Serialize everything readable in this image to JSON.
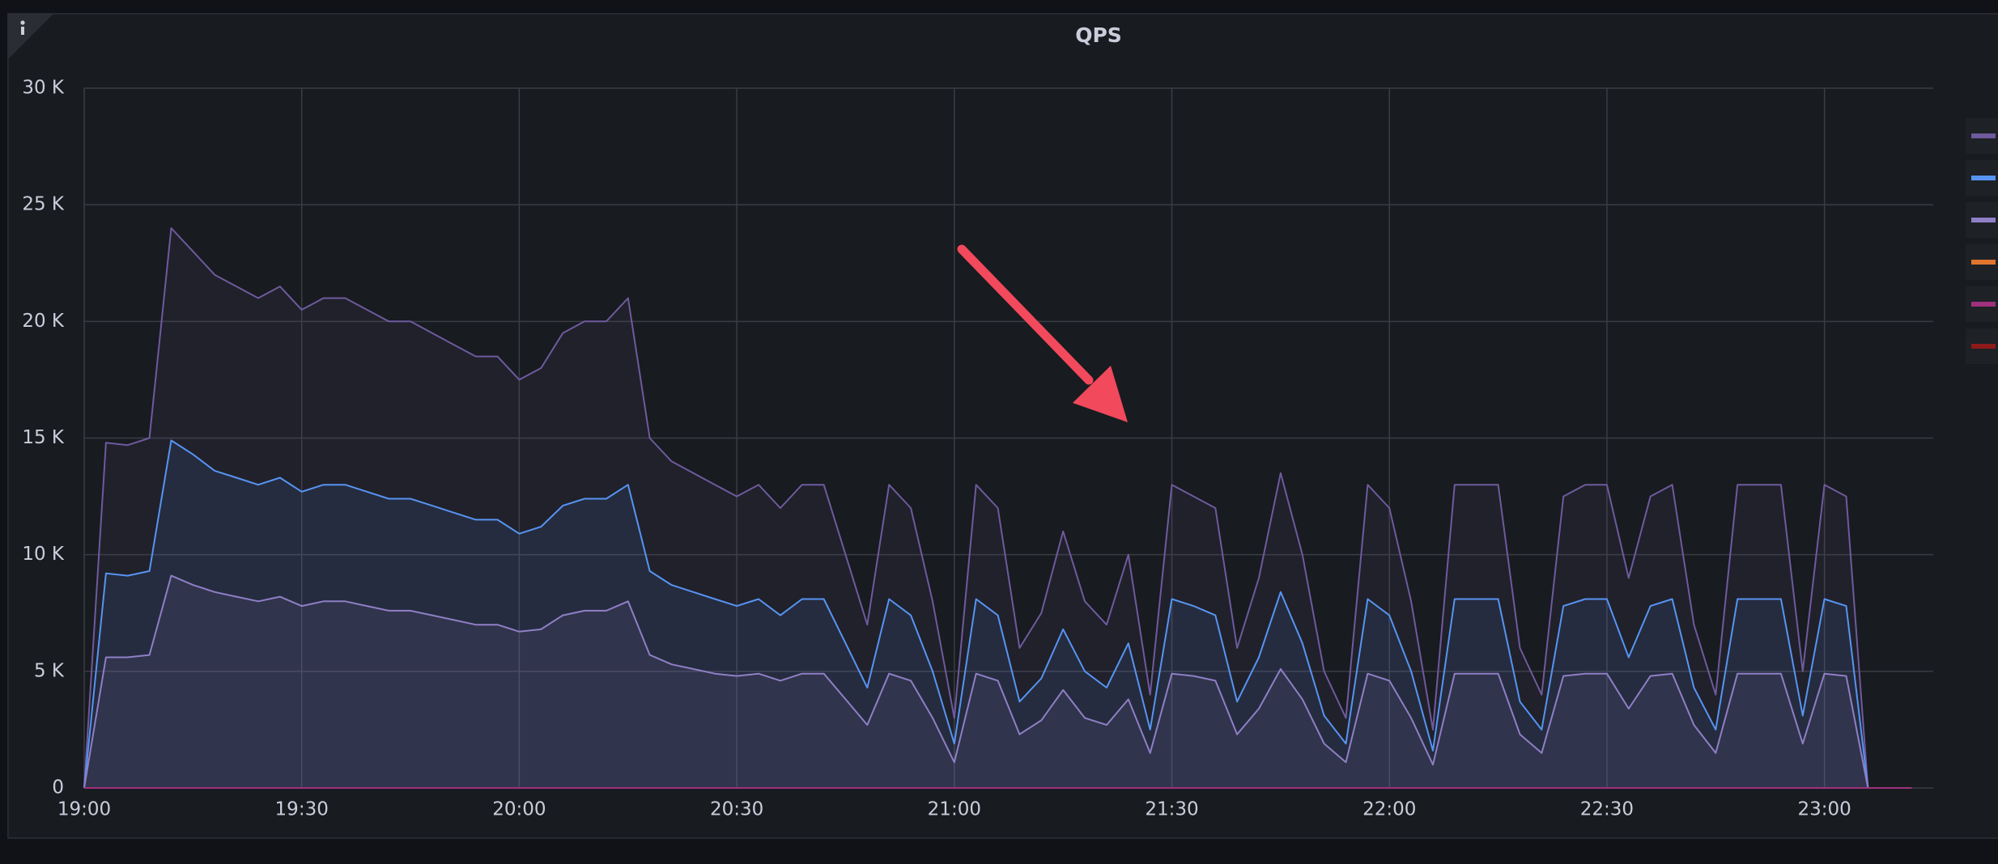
{
  "chart_data": {
    "type": "line",
    "title": "QPS",
    "x": [
      "19:00",
      "19:03",
      "19:06",
      "19:09",
      "19:12",
      "19:15",
      "19:18",
      "19:21",
      "19:24",
      "19:27",
      "19:30",
      "19:33",
      "19:36",
      "19:39",
      "19:42",
      "19:45",
      "19:48",
      "19:51",
      "19:54",
      "19:57",
      "20:00",
      "20:03",
      "20:06",
      "20:09",
      "20:12",
      "20:15",
      "20:18",
      "20:21",
      "20:24",
      "20:27",
      "20:30",
      "20:33",
      "20:36",
      "20:39",
      "20:42",
      "20:45",
      "20:48",
      "20:51",
      "20:54",
      "20:57",
      "21:00",
      "21:03",
      "21:06",
      "21:09",
      "21:12",
      "21:15",
      "21:18",
      "21:21",
      "21:24",
      "21:27",
      "21:30",
      "21:33",
      "21:36",
      "21:39",
      "21:42",
      "21:45",
      "21:48",
      "21:51",
      "21:54",
      "21:57",
      "22:00",
      "22:03",
      "22:06",
      "22:09",
      "22:12",
      "22:15",
      "22:18",
      "22:21",
      "22:24",
      "22:27",
      "22:30",
      "22:33",
      "22:36",
      "22:39",
      "22:42",
      "22:45",
      "22:48",
      "22:51",
      "22:54",
      "22:57",
      "23:00",
      "23:03",
      "23:06",
      "23:09",
      "23:12"
    ],
    "series": [
      {
        "color": "#6e5a9e",
        "values": [
          0,
          14800,
          14700,
          15000,
          24000,
          23000,
          22000,
          21500,
          21000,
          21500,
          20500,
          21000,
          21000,
          20500,
          20000,
          20000,
          19500,
          19000,
          18500,
          18500,
          17500,
          18000,
          19500,
          20000,
          20000,
          21000,
          15000,
          14000,
          13500,
          13000,
          12500,
          13000,
          12000,
          13000,
          13000,
          10000,
          7000,
          13000,
          12000,
          8000,
          3000,
          13000,
          12000,
          6000,
          7500,
          11000,
          8000,
          7000,
          10000,
          4000,
          13000,
          12500,
          12000,
          6000,
          9000,
          13500,
          10000,
          5000,
          3000,
          13000,
          12000,
          8000,
          2500,
          13000,
          13000,
          13000,
          6000,
          4000,
          12500,
          13000,
          13000,
          9000,
          12500,
          13000,
          7000,
          4000,
          13000,
          13000,
          13000,
          5000,
          13000,
          12500,
          0,
          0,
          0
        ]
      },
      {
        "color": "#5794f2",
        "values": [
          0,
          9200,
          9100,
          9300,
          14900,
          14300,
          13600,
          13300,
          13000,
          13300,
          12700,
          13000,
          13000,
          12700,
          12400,
          12400,
          12100,
          11800,
          11500,
          11500,
          10900,
          11200,
          12100,
          12400,
          12400,
          13000,
          9300,
          8700,
          8400,
          8100,
          7800,
          8100,
          7400,
          8100,
          8100,
          6200,
          4300,
          8100,
          7400,
          5000,
          1900,
          8100,
          7400,
          3700,
          4700,
          6800,
          5000,
          4300,
          6200,
          2500,
          8100,
          7800,
          7400,
          3700,
          5600,
          8400,
          6200,
          3100,
          1900,
          8100,
          7400,
          5000,
          1600,
          8100,
          8100,
          8100,
          3700,
          2500,
          7800,
          8100,
          8100,
          5600,
          7800,
          8100,
          4300,
          2500,
          8100,
          8100,
          8100,
          3100,
          8100,
          7800,
          0,
          0,
          0
        ]
      },
      {
        "color": "#8f7fc6",
        "values": [
          0,
          5600,
          5600,
          5700,
          9100,
          8700,
          8400,
          8200,
          8000,
          8200,
          7800,
          8000,
          8000,
          7800,
          7600,
          7600,
          7400,
          7200,
          7000,
          7000,
          6700,
          6800,
          7400,
          7600,
          7600,
          8000,
          5700,
          5300,
          5100,
          4900,
          4800,
          4900,
          4600,
          4900,
          4900,
          3800,
          2700,
          4900,
          4600,
          3000,
          1100,
          4900,
          4600,
          2300,
          2900,
          4200,
          3000,
          2700,
          3800,
          1500,
          4900,
          4800,
          4600,
          2300,
          3400,
          5100,
          3800,
          1900,
          1100,
          4900,
          4600,
          3000,
          1000,
          4900,
          4900,
          4900,
          2300,
          1500,
          4800,
          4900,
          4900,
          3400,
          4800,
          4900,
          2700,
          1500,
          4900,
          4900,
          4900,
          1900,
          4900,
          4800,
          0,
          0,
          0
        ]
      },
      {
        "color": "#e0752d",
        "values": [
          0,
          0,
          0,
          0,
          0,
          0,
          0,
          0,
          0,
          0,
          0,
          0,
          0,
          0,
          0,
          0,
          0,
          0,
          0,
          0,
          0,
          0,
          0,
          0,
          0,
          0,
          0,
          0,
          0,
          0,
          0,
          0,
          0,
          0,
          0,
          0,
          0,
          0,
          0,
          0,
          0,
          0,
          0,
          0,
          0,
          0,
          0,
          0,
          0,
          0,
          0,
          0,
          0,
          0,
          0,
          0,
          0,
          0,
          0,
          0,
          0,
          0,
          0,
          0,
          0,
          0,
          0,
          0,
          0,
          0,
          0,
          0,
          0,
          0,
          0,
          0,
          0,
          0,
          0,
          0,
          0,
          0,
          0,
          0,
          0
        ]
      },
      {
        "color": "#8e1a1a",
        "values": [
          0,
          0,
          0,
          0,
          0,
          0,
          0,
          0,
          0,
          0,
          0,
          0,
          0,
          0,
          0,
          0,
          0,
          0,
          0,
          0,
          0,
          0,
          0,
          0,
          0,
          0,
          0,
          0,
          0,
          0,
          0,
          0,
          0,
          0,
          0,
          0,
          0,
          0,
          0,
          0,
          0,
          0,
          0,
          0,
          0,
          0,
          0,
          0,
          0,
          0,
          0,
          0,
          0,
          0,
          0,
          0,
          0,
          0,
          0,
          0,
          0,
          0,
          0,
          0,
          0,
          0,
          0,
          0,
          0,
          0,
          0,
          0,
          0,
          0,
          0,
          0,
          0,
          0,
          0,
          0,
          0,
          0,
          0,
          0,
          0
        ]
      },
      {
        "color": "#a0307d",
        "values": [
          0,
          0,
          0,
          0,
          0,
          0,
          0,
          0,
          0,
          0,
          0,
          0,
          0,
          0,
          0,
          0,
          0,
          0,
          0,
          0,
          0,
          0,
          0,
          0,
          0,
          0,
          0,
          0,
          0,
          0,
          0,
          0,
          0,
          0,
          0,
          0,
          0,
          0,
          0,
          0,
          0,
          0,
          0,
          0,
          0,
          0,
          0,
          0,
          0,
          0,
          0,
          0,
          0,
          0,
          0,
          0,
          0,
          0,
          0,
          0,
          0,
          0,
          0,
          0,
          0,
          0,
          0,
          0,
          0,
          0,
          0,
          0,
          0,
          0,
          0,
          0,
          0,
          0,
          0,
          0,
          0,
          0,
          0,
          0,
          0
        ]
      }
    ],
    "legend_order": [
      0,
      1,
      2,
      3,
      5,
      4
    ],
    "xlim": [
      "19:00",
      "23:15"
    ],
    "xticks": [
      "19:00",
      "19:30",
      "20:00",
      "20:30",
      "21:00",
      "21:30",
      "22:00",
      "22:30",
      "23:00"
    ],
    "ylim": [
      0,
      30000
    ],
    "yticks": [
      {
        "value": 0,
        "label": "0"
      },
      {
        "value": 5000,
        "label": "5 K"
      },
      {
        "value": 10000,
        "label": "10 K"
      },
      {
        "value": 15000,
        "label": "15 K"
      },
      {
        "value": 20000,
        "label": "20 K"
      },
      {
        "value": 25000,
        "label": "25 K"
      },
      {
        "value": 30000,
        "label": "30 K"
      }
    ],
    "grid": true,
    "fill": true,
    "legend": "right"
  }
}
